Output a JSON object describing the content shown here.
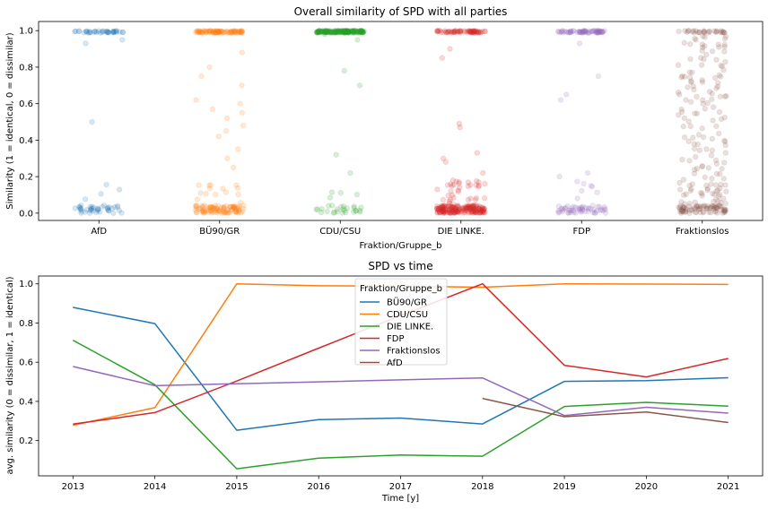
{
  "chart_data": [
    {
      "type": "scatter",
      "title": "Overall similarity of SPD with all parties",
      "xlabel": "Fraktion/Gruppe_b",
      "ylabel": "Similarity (1 = identical, 0 = dissimilar)",
      "categories": [
        "AfD",
        "BÜ90/GR",
        "CDU/CSU",
        "DIE LINKE.",
        "FDP",
        "Fraktionslos"
      ],
      "colors": [
        "#1f77b4",
        "#ff7f0e",
        "#2ca02c",
        "#d62728",
        "#9467bd",
        "#8c564b"
      ],
      "ylim": [
        -0.04,
        1.05
      ],
      "yticks": [
        "0.0",
        "0.2",
        "0.4",
        "0.6",
        "0.8",
        "1.0"
      ],
      "grid": false,
      "distribution": {
        "AfD": {
          "n_at_1": 40,
          "n_at_0": 45,
          "mid": [
            0.5,
            0.95,
            0.93
          ]
        },
        "BÜ90/GR": {
          "n_at_1": 90,
          "n_at_0": 110,
          "mid": [
            0.42,
            0.48,
            0.55,
            0.6,
            0.62,
            0.7,
            0.75,
            0.3,
            0.25,
            0.35,
            0.52,
            0.57,
            0.8,
            0.88,
            0.45
          ]
        },
        "CDU/CSU": {
          "n_at_1": 180,
          "n_at_0": 30,
          "mid": [
            0.7,
            0.78,
            0.22,
            0.32,
            0.98,
            0.95
          ]
        },
        "DIE LINKE.": {
          "n_at_1": 70,
          "n_at_0": 220,
          "mid": [
            0.49,
            0.47,
            0.33,
            0.28,
            0.85,
            0.9,
            0.22,
            0.18,
            0.13,
            0.3
          ]
        },
        "FDP": {
          "n_at_1": 70,
          "n_at_0": 60,
          "mid": [
            0.22,
            0.2,
            0.65,
            0.62,
            0.93,
            0.75,
            0.15
          ]
        },
        "Fraktionslos": {
          "n_at_1": 30,
          "n_at_0": 90,
          "mid_count": 140
        }
      }
    },
    {
      "type": "line",
      "title": "SPD vs time",
      "xlabel": "Time [y]",
      "ylabel": "avg. similarity (0 = dissimilar, 1 = identical)",
      "x": [
        2013,
        2014,
        2015,
        2016,
        2017,
        2018,
        2019,
        2020,
        2021
      ],
      "xlim": [
        2012.58,
        2021.42
      ],
      "ylim": [
        0.02,
        1.04
      ],
      "yticks": [
        "0.2",
        "0.4",
        "0.6",
        "0.8",
        "1.0"
      ],
      "legend_title": "Fraktion/Gruppe_b",
      "legend_position": "upper-center",
      "grid": false,
      "series": [
        {
          "name": "BÜ90/GR",
          "color": "#1f77b4",
          "values": [
            0.88,
            0.797,
            0.253,
            0.307,
            0.315,
            0.285,
            0.502,
            0.506,
            0.521
          ]
        },
        {
          "name": "CDU/CSU",
          "color": "#ff7f0e",
          "values": [
            0.278,
            0.368,
            1.0,
            0.99,
            0.988,
            0.983,
            1.0,
            0.999,
            0.997
          ]
        },
        {
          "name": "DIE LINKE.",
          "color": "#2ca02c",
          "values": [
            0.712,
            0.485,
            0.056,
            0.11,
            0.126,
            0.12,
            0.374,
            0.395,
            0.376
          ]
        },
        {
          "name": "FDP",
          "color": "#d62728",
          "values": [
            0.284,
            0.343,
            0.504,
            0.672,
            0.838,
            1.0,
            0.584,
            0.525,
            0.619
          ]
        },
        {
          "name": "Fraktionslos",
          "color": "#9467bd",
          "values": [
            0.578,
            0.48,
            0.49,
            0.5,
            0.51,
            0.52,
            0.328,
            0.37,
            0.34
          ]
        },
        {
          "name": "AfD",
          "color": "#8c564b",
          "values": [
            null,
            null,
            null,
            null,
            null,
            0.415,
            0.322,
            0.346,
            0.292
          ]
        }
      ]
    }
  ]
}
